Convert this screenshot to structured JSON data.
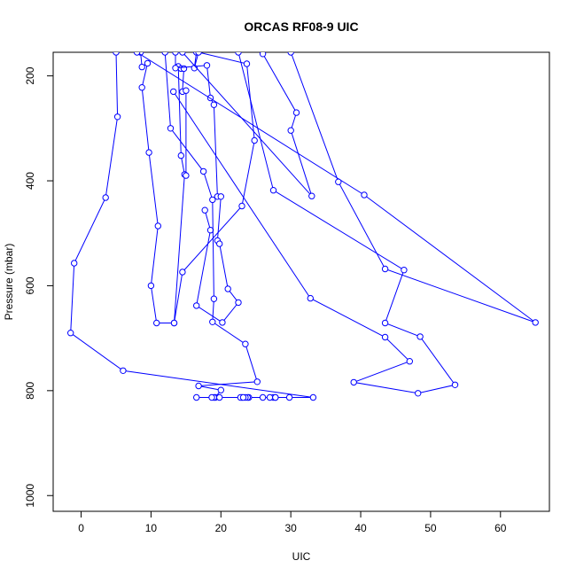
{
  "chart_data": {
    "type": "line",
    "title": "ORCAS RF08-9 UIC",
    "xlabel": "UIC",
    "ylabel": "Pressure (mbar)",
    "xlim": [
      -4,
      67
    ],
    "ylim": [
      1030,
      155
    ],
    "y_reversed": true,
    "x_ticks": [
      0,
      10,
      20,
      30,
      40,
      50,
      60
    ],
    "y_ticks": [
      200,
      400,
      600,
      800,
      1000
    ],
    "grid": false,
    "legend": "none",
    "color": "#0000ff",
    "marker": "open-circle",
    "series": [
      {
        "points": [
          [
            5.0,
            155
          ],
          [
            5.2,
            278
          ],
          [
            3.5,
            432
          ],
          [
            -1.0,
            557
          ],
          [
            -1.5,
            690
          ],
          [
            6.0,
            762
          ],
          [
            33.2,
            813
          ],
          [
            23.0,
            813
          ],
          [
            27.8,
            813
          ]
        ]
      },
      {
        "points": [
          [
            8.5,
            155
          ],
          [
            8.7,
            183
          ],
          [
            9.5,
            176
          ],
          [
            8.7,
            222
          ],
          [
            9.7,
            346
          ],
          [
            11.0,
            486
          ],
          [
            10.0,
            600
          ],
          [
            10.8,
            671
          ],
          [
            13.3,
            671
          ],
          [
            14.8,
            388
          ],
          [
            14.3,
            352
          ],
          [
            13.9,
            182
          ],
          [
            14.3,
            186
          ],
          [
            14.7,
            186
          ],
          [
            14.5,
            230
          ],
          [
            15.0,
            228
          ],
          [
            15.0,
            390
          ]
        ]
      },
      {
        "points": [
          [
            13.5,
            155
          ],
          [
            13.5,
            185
          ],
          [
            18.0,
            180
          ],
          [
            18.5,
            242
          ],
          [
            19.0,
            255
          ],
          [
            19.5,
            430
          ],
          [
            20.0,
            430
          ],
          [
            19.5,
            514
          ],
          [
            19.8,
            520
          ],
          [
            21.0,
            606
          ],
          [
            22.5,
            632
          ],
          [
            20.2,
            670
          ],
          [
            16.5,
            638
          ],
          [
            18.5,
            494
          ],
          [
            17.7,
            456
          ]
        ]
      },
      {
        "points": [
          [
            12.0,
            155
          ],
          [
            12.8,
            300
          ],
          [
            17.5,
            382
          ],
          [
            18.8,
            436
          ],
          [
            19.0,
            625
          ],
          [
            18.8,
            669
          ],
          [
            23.5,
            711
          ],
          [
            25.2,
            783
          ],
          [
            16.8,
            791
          ],
          [
            20.0,
            799
          ],
          [
            19.2,
            813
          ],
          [
            16.5,
            813
          ],
          [
            24.0,
            813
          ],
          [
            23.8,
            813
          ],
          [
            27.5,
            813
          ],
          [
            26.0,
            813
          ],
          [
            22.8,
            813
          ],
          [
            23.5,
            813
          ],
          [
            23.2,
            813
          ],
          [
            27.0,
            813
          ],
          [
            29.8,
            813
          ],
          [
            27.8,
            813
          ],
          [
            19.8,
            813
          ],
          [
            19.0,
            813
          ],
          [
            18.7,
            813
          ]
        ]
      },
      {
        "points": [
          [
            16.5,
            155
          ],
          [
            16.2,
            185
          ],
          [
            16.8,
            155
          ],
          [
            23.7,
            177
          ],
          [
            24.8,
            323
          ],
          [
            23.0,
            448
          ],
          [
            14.5,
            574
          ],
          [
            13.3,
            671
          ]
        ]
      },
      {
        "points": [
          [
            22.5,
            155
          ],
          [
            27.5,
            418
          ],
          [
            46.2,
            570
          ],
          [
            43.5,
            671
          ],
          [
            48.5,
            697
          ],
          [
            53.5,
            789
          ],
          [
            48.2,
            805
          ],
          [
            39.0,
            784
          ],
          [
            47.0,
            744
          ],
          [
            43.5,
            698
          ],
          [
            32.8,
            624
          ],
          [
            13.2,
            230
          ]
        ]
      },
      {
        "points": [
          [
            26.0,
            158
          ],
          [
            30.8,
            270
          ],
          [
            30.0,
            304
          ],
          [
            33.0,
            429
          ],
          [
            14.5,
            155
          ]
        ]
      },
      {
        "points": [
          [
            30.0,
            155
          ],
          [
            36.8,
            402
          ],
          [
            43.5,
            568
          ],
          [
            65.0,
            670
          ],
          [
            40.5,
            427
          ],
          [
            8.0,
            155
          ]
        ]
      }
    ]
  }
}
